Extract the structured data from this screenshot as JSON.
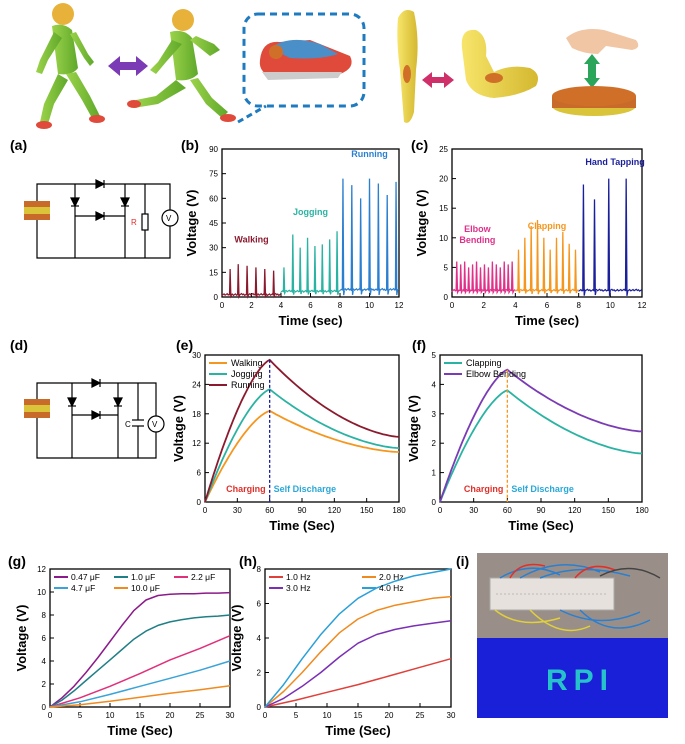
{
  "colors": {
    "walking": "#8b1a2e",
    "jogging": "#2ab3a3",
    "running": "#2a7fd0",
    "elbow": "#e0308a",
    "clapping": "#f5961e",
    "tapping": "#1a1f9c",
    "charging_text": "#e0302a",
    "discharge_text": "#2aa8d8",
    "arrow_purple": "#7a3bb5",
    "arrow_pink": "#d0306a",
    "arrow_green": "#2aa55a",
    "dashed_box": "#1f7bbf"
  },
  "panel_labels": {
    "a": "(a)",
    "b": "(b)",
    "c": "(c)",
    "d": "(d)",
    "e": "(e)",
    "f": "(f)",
    "g": "(g)",
    "h": "(h)",
    "i": "(i)"
  },
  "circuit_a": {
    "resistor_label": "R",
    "meter_label": "V"
  },
  "circuit_d": {
    "capacitor_label": "C",
    "meter_label": "V"
  },
  "chart_data": [
    {
      "id": "b",
      "type": "line",
      "xlabel": "Time (sec)",
      "ylabel": "Voltage (V)",
      "xlim": [
        0,
        12
      ],
      "ylim": [
        0,
        90
      ],
      "xticks": [
        "0",
        "2",
        "4",
        "6",
        "8",
        "10",
        "12"
      ],
      "yticks": [
        "0",
        "15",
        "30",
        "45",
        "60",
        "75",
        "90"
      ],
      "series": [
        {
          "name": "Walking",
          "segment": [
            0,
            4
          ],
          "peak_times": [
            0.55,
            1.1,
            1.7,
            2.3,
            2.9,
            3.5
          ],
          "peak_values": [
            17,
            20,
            19,
            18,
            17,
            16
          ],
          "baseline": 1
        },
        {
          "name": "Jogging",
          "segment": [
            4,
            8
          ],
          "peak_times": [
            4.2,
            4.8,
            5.3,
            5.8,
            6.3,
            6.8,
            7.3,
            7.8
          ],
          "peak_values": [
            18,
            38,
            30,
            36,
            31,
            32,
            35,
            40
          ],
          "baseline": 3
        },
        {
          "name": "Running",
          "segment": [
            8,
            12
          ],
          "peak_times": [
            8.2,
            8.8,
            9.4,
            10.0,
            10.6,
            11.2,
            11.8
          ],
          "peak_values": [
            72,
            68,
            60,
            72,
            69,
            62,
            70
          ],
          "baseline": 4
        }
      ]
    },
    {
      "id": "c",
      "type": "line",
      "xlabel": "Time (sec)",
      "ylabel": "Voltage (V)",
      "xlim": [
        0,
        12
      ],
      "ylim": [
        0,
        25
      ],
      "xticks": [
        "0",
        "2",
        "4",
        "6",
        "8",
        "10",
        "12"
      ],
      "yticks": [
        "0",
        "5",
        "10",
        "15",
        "20",
        "25"
      ],
      "series": [
        {
          "name": "Elbow Bending",
          "label": "Elbow Bending",
          "segment": [
            0,
            4
          ],
          "peak_times": [
            0.3,
            0.55,
            0.8,
            1.05,
            1.3,
            1.55,
            1.8,
            2.05,
            2.3,
            2.55,
            2.8,
            3.05,
            3.3,
            3.55,
            3.8
          ],
          "peak_values": [
            6,
            5.5,
            6,
            5,
            5.5,
            6,
            5,
            5.5,
            5,
            6,
            5.5,
            5,
            6,
            5.5,
            6
          ],
          "baseline": 1
        },
        {
          "name": "Clapping",
          "segment": [
            4,
            8
          ],
          "peak_times": [
            4.2,
            4.6,
            5.0,
            5.4,
            5.8,
            6.2,
            6.6,
            7.0,
            7.4,
            7.8
          ],
          "peak_values": [
            8,
            10,
            12,
            13,
            10,
            8,
            10,
            11,
            9,
            8
          ],
          "baseline": 1
        },
        {
          "name": "Hand Tapping",
          "segment": [
            8,
            12
          ],
          "peak_times": [
            8.3,
            9.0,
            9.9,
            11.0
          ],
          "peak_values": [
            19,
            16.5,
            20,
            20
          ],
          "baseline": 1
        }
      ]
    },
    {
      "id": "e",
      "type": "line",
      "xlabel": "Time (Sec)",
      "ylabel": "Voltage (V)",
      "xlim": [
        0,
        180
      ],
      "ylim": [
        0,
        30
      ],
      "xticks": [
        "0",
        "30",
        "60",
        "90",
        "120",
        "150",
        "180"
      ],
      "yticks": [
        "0",
        "6",
        "12",
        "18",
        "24",
        "30"
      ],
      "charge_end": 60,
      "annotations": {
        "charging": "Charging",
        "discharge": "Self Discharge"
      },
      "series": [
        {
          "name": "Walking",
          "peak": 18.6,
          "final": 10.2
        },
        {
          "name": "Jogging",
          "peak": 23.0,
          "final": 11.0
        },
        {
          "name": "Running",
          "peak": 29.0,
          "final": 13.3
        }
      ]
    },
    {
      "id": "f",
      "type": "line",
      "xlabel": "Time (Sec)",
      "ylabel": "Voltage (V)",
      "xlim": [
        0,
        180
      ],
      "ylim": [
        0,
        5
      ],
      "xticks": [
        "0",
        "30",
        "60",
        "90",
        "120",
        "150",
        "180"
      ],
      "yticks": [
        "0",
        "1",
        "2",
        "3",
        "4",
        "5"
      ],
      "charge_end": 60,
      "annotations": {
        "charging": "Charging",
        "discharge": "Self Discharge"
      },
      "series": [
        {
          "name": "Clapping",
          "peak": 3.8,
          "final": 1.65
        },
        {
          "name": "Elbow Bending",
          "peak": 4.5,
          "final": 2.4
        }
      ]
    },
    {
      "id": "g",
      "type": "line",
      "xlabel": "Time (Sec)",
      "ylabel": "Voltage (V)",
      "xlim": [
        0,
        30
      ],
      "ylim": [
        0,
        12
      ],
      "xticks": [
        "0",
        "5",
        "10",
        "15",
        "20",
        "25",
        "30"
      ],
      "yticks": [
        "0",
        "2",
        "4",
        "6",
        "8",
        "10",
        "12"
      ],
      "series": [
        {
          "name": "0.47 μF",
          "color": "#8b1a8a",
          "x": [
            0,
            2,
            4,
            6,
            8,
            10,
            12,
            14,
            16,
            18,
            20,
            22,
            24,
            26,
            28,
            30
          ],
          "y": [
            0,
            0.8,
            1.8,
            3.0,
            4.3,
            5.7,
            7.1,
            8.4,
            9.3,
            9.7,
            9.8,
            9.85,
            9.85,
            9.9,
            9.9,
            9.95
          ]
        },
        {
          "name": "1.0 μF",
          "color": "#1f7f86",
          "x": [
            0,
            2,
            4,
            6,
            8,
            10,
            12,
            14,
            16,
            18,
            20,
            22,
            24,
            26,
            28,
            30
          ],
          "y": [
            0,
            0.6,
            1.4,
            2.3,
            3.2,
            4.1,
            5.0,
            5.9,
            6.6,
            7.1,
            7.4,
            7.6,
            7.75,
            7.85,
            7.9,
            8.0
          ]
        },
        {
          "name": "2.2 μF",
          "color": "#e0307a",
          "x": [
            0,
            5,
            10,
            15,
            20,
            25,
            30
          ],
          "y": [
            0,
            0.8,
            1.8,
            2.9,
            4.1,
            5.1,
            6.2
          ]
        },
        {
          "name": "4.7 μF",
          "color": "#3aa3d8",
          "x": [
            0,
            5,
            10,
            15,
            20,
            25,
            30
          ],
          "y": [
            0,
            0.45,
            1.1,
            1.8,
            2.5,
            3.2,
            4.0
          ]
        },
        {
          "name": "10.0 μF",
          "color": "#f08a1e",
          "x": [
            0,
            5,
            10,
            15,
            20,
            25,
            30
          ],
          "y": [
            0,
            0.2,
            0.5,
            0.85,
            1.2,
            1.5,
            1.85
          ]
        }
      ]
    },
    {
      "id": "h",
      "type": "line",
      "xlabel": "Time (Sec)",
      "ylabel": "Voltage (V)",
      "xlim": [
        0,
        30
      ],
      "ylim": [
        0,
        8
      ],
      "xticks": [
        "0",
        "5",
        "10",
        "15",
        "20",
        "25",
        "30"
      ],
      "yticks": [
        "0",
        "2",
        "4",
        "6",
        "8"
      ],
      "series": [
        {
          "name": "1.0 Hz",
          "color": "#e0403a",
          "x": [
            0,
            5,
            10,
            15,
            20,
            25,
            30
          ],
          "y": [
            0,
            0.4,
            0.85,
            1.3,
            1.8,
            2.3,
            2.8
          ]
        },
        {
          "name": "2.0 Hz",
          "color": "#f08a1e",
          "x": [
            0,
            3,
            6,
            9,
            12,
            15,
            18,
            21,
            24,
            27,
            30
          ],
          "y": [
            0,
            0.9,
            2.0,
            3.2,
            4.3,
            5.1,
            5.6,
            5.9,
            6.1,
            6.3,
            6.4
          ]
        },
        {
          "name": "3.0 Hz",
          "color": "#7a2fb5",
          "x": [
            0,
            3,
            6,
            9,
            12,
            15,
            18,
            21,
            24,
            27,
            30
          ],
          "y": [
            0,
            0.5,
            1.2,
            2.0,
            2.9,
            3.7,
            4.2,
            4.5,
            4.7,
            4.85,
            5.0
          ]
        },
        {
          "name": "4.0 Hz",
          "color": "#2aa0d8",
          "x": [
            0,
            3,
            6,
            9,
            12,
            15,
            18,
            21,
            24,
            27,
            30
          ],
          "y": [
            0,
            1.3,
            2.8,
            4.2,
            5.4,
            6.3,
            6.9,
            7.3,
            7.6,
            7.8,
            8.0
          ]
        }
      ]
    }
  ],
  "photo_i": {
    "led_text": "RPI"
  }
}
